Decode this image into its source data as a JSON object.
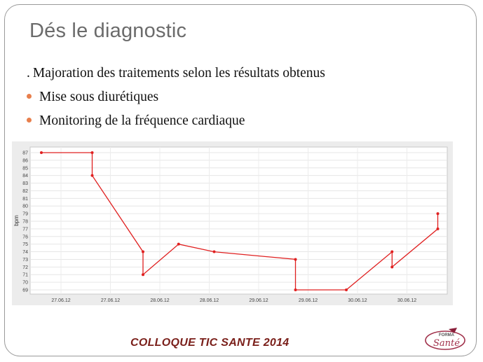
{
  "slide": {
    "title": "Dés le diagnostic",
    "bullets": [
      {
        "style": "dot-prefix",
        "prefix": ".",
        "text": "Majoration des traitements selon les résultats obtenus"
      },
      {
        "style": "bullet",
        "text": "Mise sous diurétiques"
      },
      {
        "style": "bullet",
        "text": "Monitoring de la fréquence cardiaque"
      }
    ],
    "footer": "COLLOQUE TIC SANTE 2014",
    "logo_text": {
      "top": "FORMA",
      "bottom": "Santé"
    }
  },
  "colors": {
    "bullet": "#e87f4c",
    "line": "#e02020",
    "footer": "#7a1f1a",
    "frame": "#9a9a9a"
  },
  "chart_data": {
    "type": "line",
    "ylabel": "bpm",
    "ylim": [
      69,
      87
    ],
    "yticks": [
      69,
      70,
      71,
      72,
      73,
      74,
      75,
      76,
      77,
      78,
      79,
      80,
      81,
      82,
      83,
      84,
      85,
      86,
      87
    ],
    "xticks": [
      "27.06.12",
      "27.06.12",
      "28.06.12",
      "28.06.12",
      "29.06.12",
      "29.06.12",
      "30.06.12",
      "30.06.12"
    ],
    "grid": true,
    "series": [
      {
        "x": [
          0.0,
          1.0,
          1.0,
          2.0,
          2.0,
          2.7,
          3.4,
          5.0,
          5.0,
          6.0,
          6.9,
          6.9,
          7.8,
          7.8
        ],
        "y": [
          87,
          87,
          84,
          74,
          71,
          75,
          74,
          73,
          69,
          69,
          74,
          72,
          77,
          79
        ]
      }
    ]
  }
}
